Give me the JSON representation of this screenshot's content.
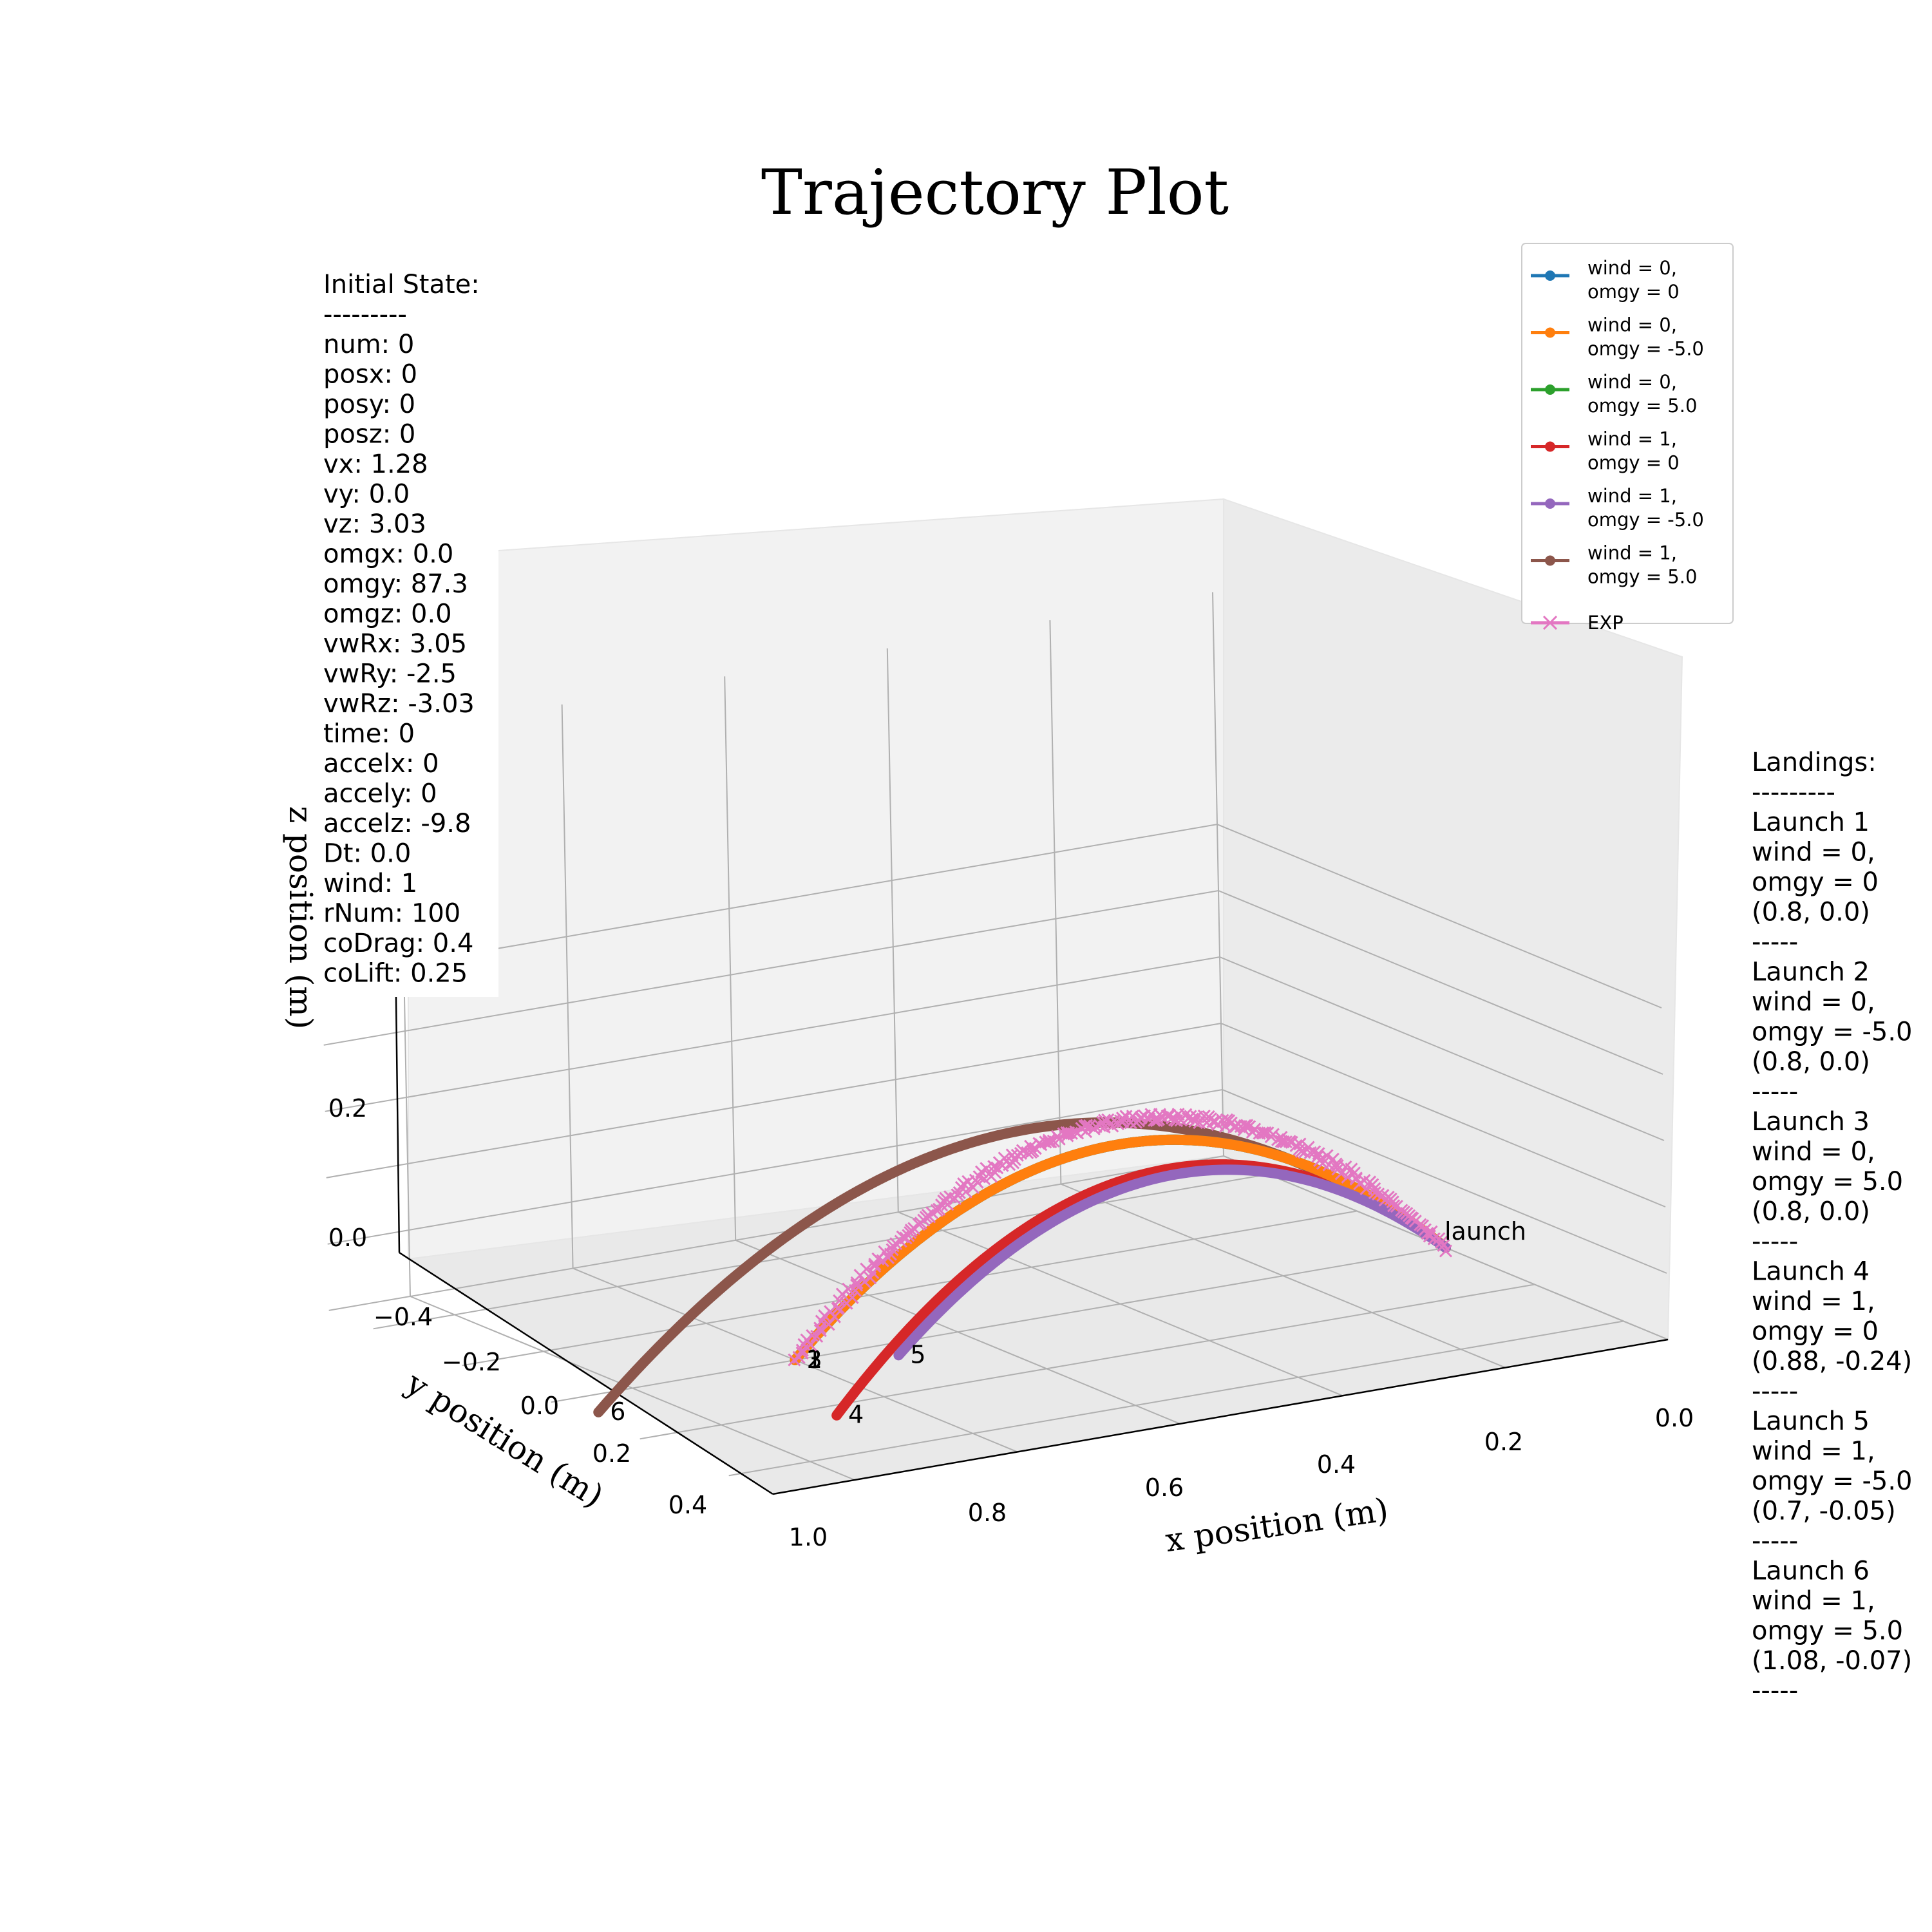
{
  "chart_data": {
    "type": "line",
    "title": "Trajectory Plot",
    "xlabel": "x position (m)",
    "ylabel": "y position (m)",
    "zlabel": "z position (m)",
    "xlim": [
      0.0,
      1.1
    ],
    "ylim": [
      -0.5,
      0.5
    ],
    "zlim": [
      0.0,
      0.75
    ],
    "x_ticks": [
      "0.0",
      "0.2",
      "0.4",
      "0.6",
      "0.8",
      "1.0"
    ],
    "y_ticks": [
      "−0.4",
      "−0.2",
      "0.0",
      "0.2",
      "0.4"
    ],
    "z_ticks": [
      "0.0",
      "0.2"
    ],
    "grid": true,
    "legend_position": "top-right",
    "series": [
      {
        "name": "wind = 0,\nomgy = 0",
        "color": "#1f77b4",
        "marker": "dot",
        "landing": [
          0.8,
          0.0
        ],
        "peak_z": 0.48,
        "label": "1"
      },
      {
        "name": "wind = 0,\nomgy = -5.0",
        "color": "#ff7f0e",
        "marker": "dot",
        "landing": [
          0.8,
          0.0
        ],
        "peak_z": 0.48,
        "label": "2"
      },
      {
        "name": "wind = 0,\nomgy = 5.0",
        "color": "#2ca02c",
        "marker": "dot",
        "landing": [
          0.8,
          0.0
        ],
        "peak_z": 0.48,
        "label": "3"
      },
      {
        "name": "wind = 1,\nomgy = 0",
        "color": "#d62728",
        "marker": "dot",
        "landing": [
          0.88,
          -0.24
        ],
        "peak_z": 0.47,
        "label": "4"
      },
      {
        "name": "wind = 1,\nomgy = -5.0",
        "color": "#9467bd",
        "marker": "dot",
        "landing": [
          0.7,
          -0.05
        ],
        "peak_z": 0.38,
        "label": "5"
      },
      {
        "name": "wind = 1,\nomgy = 5.0",
        "color": "#8c564b",
        "marker": "dot",
        "landing": [
          1.08,
          -0.07
        ],
        "peak_z": 0.6,
        "label": "6"
      },
      {
        "name": "EXP",
        "color": "#e377c2",
        "marker": "x",
        "landing": [
          0.8,
          0.0
        ],
        "peak_z": 0.55,
        "label": ""
      }
    ],
    "annotations": {
      "launch": "launch"
    }
  },
  "info_initial": [
    "Initial State:",
    "---------",
    "num: 0",
    "posx: 0",
    "posy: 0",
    "posz: 0",
    "vx: 1.28",
    "vy: 0.0",
    "vz: 3.03",
    "omgx: 0.0",
    "omgy: 87.3",
    "omgz: 0.0",
    "vwRx: 3.05",
    "vwRy: -2.5",
    "vwRz: -3.03",
    "time: 0",
    "accelx: 0",
    "accely: 0",
    "accelz: -9.8",
    "Dt: 0.0",
    "wind: 1",
    "rNum: 100",
    "coDrag: 0.4",
    "coLift: 0.25"
  ],
  "info_landings": [
    "Landings:",
    "---------",
    "Launch 1",
    "wind = 0,",
    "omgy = 0",
    "(0.8, 0.0)",
    "-----",
    "Launch 2",
    "wind = 0,",
    "omgy = -5.0",
    "(0.8, 0.0)",
    "-----",
    "Launch 3",
    "wind = 0,",
    "omgy = 5.0",
    "(0.8, 0.0)",
    "-----",
    "Launch 4",
    "wind = 1,",
    "omgy = 0",
    "(0.88, -0.24)",
    "-----",
    "Launch 5",
    "wind = 1,",
    "omgy = -5.0",
    "(0.7, -0.05)",
    "-----",
    "Launch 6",
    "wind = 1,",
    "omgy = 5.0",
    "(1.08, -0.07)",
    "-----"
  ]
}
